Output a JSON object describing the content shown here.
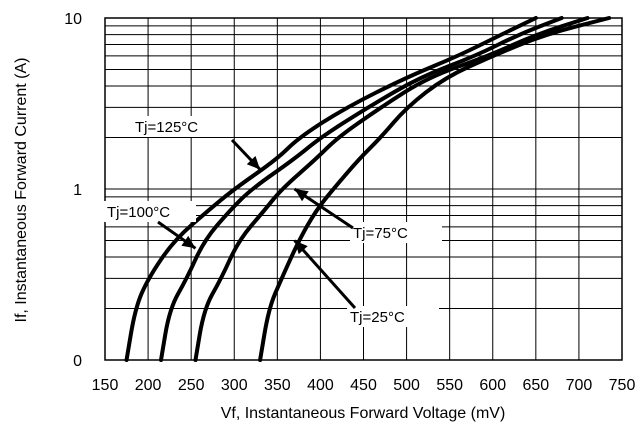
{
  "chart_data": {
    "type": "line",
    "xlabel": "Vf, Instantaneous Forward  Voltage (mV)",
    "ylabel": "If, Instantaneous Forward Current (A)",
    "xlim": [
      150,
      750
    ],
    "ylim": [
      0,
      10
    ],
    "yscale": "log",
    "x_ticks": [
      "150",
      "200",
      "250",
      "300",
      "350",
      "400",
      "450",
      "500",
      "550",
      "600",
      "650",
      "700",
      "750"
    ],
    "y_ticks": [
      "0",
      "1",
      "10"
    ],
    "grid": true,
    "series": [
      {
        "name": "Tj=125°C",
        "points": [
          [
            175,
            0.1
          ],
          [
            185,
            0.2
          ],
          [
            200,
            0.3
          ],
          [
            230,
            0.5
          ],
          [
            270,
            0.75
          ],
          [
            300,
            1.0
          ],
          [
            350,
            1.5
          ],
          [
            375,
            2.0
          ],
          [
            430,
            3.0
          ],
          [
            500,
            4.5
          ],
          [
            560,
            6.0
          ],
          [
            610,
            8.0
          ],
          [
            650,
            10.0
          ]
        ]
      },
      {
        "name": "Tj=100°C",
        "points": [
          [
            215,
            0.1
          ],
          [
            225,
            0.2
          ],
          [
            245,
            0.3
          ],
          [
            265,
            0.5
          ],
          [
            295,
            0.75
          ],
          [
            320,
            1.0
          ],
          [
            370,
            1.5
          ],
          [
            400,
            2.0
          ],
          [
            455,
            3.0
          ],
          [
            515,
            4.5
          ],
          [
            580,
            6.0
          ],
          [
            630,
            8.0
          ],
          [
            680,
            10.0
          ]
        ]
      },
      {
        "name": "Tj=75°C",
        "points": [
          [
            255,
            0.1
          ],
          [
            265,
            0.2
          ],
          [
            285,
            0.3
          ],
          [
            305,
            0.5
          ],
          [
            335,
            0.75
          ],
          [
            355,
            1.0
          ],
          [
            395,
            1.5
          ],
          [
            420,
            2.0
          ],
          [
            470,
            3.0
          ],
          [
            525,
            4.5
          ],
          [
            595,
            6.0
          ],
          [
            650,
            8.0
          ],
          [
            710,
            10.0
          ]
        ]
      },
      {
        "name": "Tj=25°C",
        "points": [
          [
            330,
            0.1
          ],
          [
            340,
            0.2
          ],
          [
            355,
            0.3
          ],
          [
            375,
            0.5
          ],
          [
            395,
            0.75
          ],
          [
            415,
            1.0
          ],
          [
            445,
            1.5
          ],
          [
            470,
            2.0
          ],
          [
            500,
            3.0
          ],
          [
            545,
            4.5
          ],
          [
            600,
            6.0
          ],
          [
            660,
            8.0
          ],
          [
            735,
            10.0
          ]
        ]
      }
    ],
    "annotations": [
      {
        "label": "Tj=125°C",
        "series": 0,
        "arrow_to": [
          330,
          1.3
        ]
      },
      {
        "label": "Tj=100°C",
        "series": 1,
        "arrow_to": [
          255,
          0.45
        ]
      },
      {
        "label": "Tj=75°C",
        "series": 2,
        "arrow_to": [
          370,
          1.0
        ]
      },
      {
        "label": "Tj=25°C",
        "series": 3,
        "arrow_to": [
          370,
          0.5
        ]
      }
    ]
  }
}
